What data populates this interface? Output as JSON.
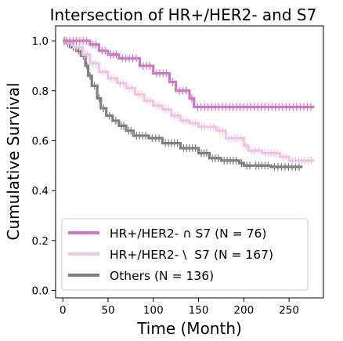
{
  "chart_data": {
    "type": "line",
    "title": "Intersection of HR+/HER2- and S7",
    "xlabel": "Time (Month)",
    "ylabel": "Cumulative Survival",
    "xlim": [
      -8,
      288
    ],
    "ylim": [
      -0.03,
      1.06
    ],
    "xticks": [
      0,
      50,
      100,
      150,
      200,
      250
    ],
    "yticks": [
      0.0,
      0.2,
      0.4,
      0.6,
      0.8,
      1.0
    ],
    "xtick_labels": [
      "0",
      "50",
      "100",
      "150",
      "200",
      "250"
    ],
    "ytick_labels": [
      "0.0",
      "0.2",
      "0.4",
      "0.6",
      "0.8",
      "1.0"
    ],
    "grid": false,
    "legend_position": "lower-left",
    "series": [
      {
        "name": "HR+/HER2- ∩ S7 (N = 76)",
        "color": "#cd78c4",
        "x": [
          0,
          30,
          40,
          50,
          62,
          85,
          100,
          118,
          125,
          140,
          145,
          278
        ],
        "y": [
          1.0,
          0.985,
          0.96,
          0.945,
          0.93,
          0.9,
          0.87,
          0.835,
          0.8,
          0.77,
          0.735,
          0.735
        ]
      },
      {
        "name": "HR+/HER2- \\  S7 (N = 167)",
        "color": "#f0c4e7",
        "x": [
          0,
          5,
          12,
          22,
          30,
          40,
          50,
          60,
          70,
          80,
          90,
          100,
          110,
          120,
          130,
          140,
          150,
          160,
          170,
          180,
          200,
          205,
          220,
          240,
          250,
          278
        ],
        "y": [
          1.0,
          0.99,
          0.975,
          0.945,
          0.91,
          0.875,
          0.85,
          0.83,
          0.81,
          0.785,
          0.76,
          0.74,
          0.725,
          0.7,
          0.68,
          0.67,
          0.655,
          0.655,
          0.64,
          0.61,
          0.58,
          0.56,
          0.55,
          0.535,
          0.52,
          0.52
        ]
      },
      {
        "name": "Others (N = 136)",
        "color": "#808080",
        "x": [
          0,
          3,
          8,
          15,
          20,
          25,
          28,
          32,
          38,
          42,
          48,
          55,
          62,
          70,
          78,
          95,
          110,
          130,
          150,
          162,
          175,
          195,
          200,
          210,
          230,
          265
        ],
        "y": [
          1.0,
          0.99,
          0.975,
          0.96,
          0.94,
          0.9,
          0.86,
          0.82,
          0.77,
          0.73,
          0.7,
          0.68,
          0.66,
          0.64,
          0.62,
          0.61,
          0.59,
          0.57,
          0.55,
          0.53,
          0.52,
          0.51,
          0.5,
          0.5,
          0.495,
          0.495
        ]
      }
    ]
  }
}
